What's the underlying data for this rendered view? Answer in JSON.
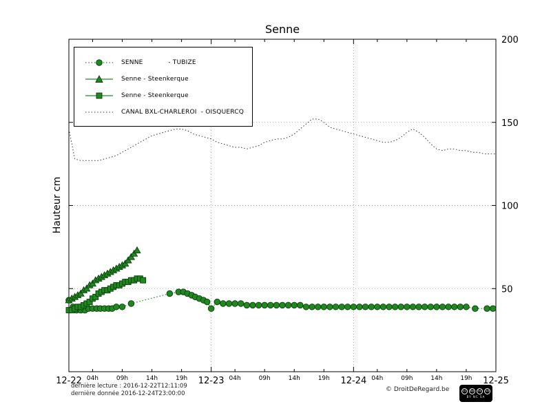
{
  "chart_data": {
    "type": "line",
    "title": "Senne",
    "ylabel": "Hauteur cm",
    "xlim_hours": [
      0,
      72
    ],
    "ylim": [
      0,
      200
    ],
    "yticks": [
      50,
      100,
      150,
      200
    ],
    "grid": "dotted-major",
    "legend_position": "upper-left",
    "x_day_ticks": [
      {
        "hour": 0,
        "label": "12-22"
      },
      {
        "hour": 24,
        "label": "12-23"
      },
      {
        "hour": 48,
        "label": "12-24"
      },
      {
        "hour": 72,
        "label": "12-25"
      }
    ],
    "x_hour_ticks": [
      {
        "hour": 4,
        "label": "04h"
      },
      {
        "hour": 9,
        "label": "09h"
      },
      {
        "hour": 14,
        "label": "14h"
      },
      {
        "hour": 19,
        "label": "19h"
      },
      {
        "hour": 28,
        "label": "04h"
      },
      {
        "hour": 33,
        "label": "09h"
      },
      {
        "hour": 38,
        "label": "14h"
      },
      {
        "hour": 43,
        "label": "19h"
      },
      {
        "hour": 52,
        "label": "04h"
      },
      {
        "hour": 57,
        "label": "09h"
      },
      {
        "hour": 62,
        "label": "14h"
      },
      {
        "hour": 67,
        "label": "19h"
      }
    ],
    "series": [
      {
        "name": "senne-tubize",
        "label": "SENNE            - TUBIZE",
        "marker": "circle",
        "line": "dotted",
        "color": "#218721",
        "points": [
          [
            0,
            43
          ],
          [
            0.7,
            39
          ],
          [
            1.3,
            37
          ],
          [
            2,
            37
          ],
          [
            2.7,
            37
          ],
          [
            3.3,
            38
          ],
          [
            4,
            38
          ],
          [
            4.7,
            38
          ],
          [
            5.3,
            38
          ],
          [
            6,
            38
          ],
          [
            6.7,
            38
          ],
          [
            7.3,
            38
          ],
          [
            8,
            39
          ],
          [
            9,
            39
          ],
          [
            10.5,
            41
          ],
          [
            17,
            47
          ],
          [
            18.5,
            48
          ],
          [
            19.3,
            48
          ],
          [
            20,
            47
          ],
          [
            20.7,
            46
          ],
          [
            21.3,
            45
          ],
          [
            22,
            44
          ],
          [
            22.7,
            43
          ],
          [
            23.3,
            42
          ],
          [
            24,
            38
          ],
          [
            25,
            42
          ],
          [
            26,
            41
          ],
          [
            27,
            41
          ],
          [
            28,
            41
          ],
          [
            29,
            41
          ],
          [
            30,
            40
          ],
          [
            31,
            40
          ],
          [
            32,
            40
          ],
          [
            33,
            40
          ],
          [
            34,
            40
          ],
          [
            35,
            40
          ],
          [
            36,
            40
          ],
          [
            37,
            40
          ],
          [
            38,
            40
          ],
          [
            39,
            40
          ],
          [
            40,
            39
          ],
          [
            41,
            39
          ],
          [
            42,
            39
          ],
          [
            43,
            39
          ],
          [
            44,
            39
          ],
          [
            45,
            39
          ],
          [
            46,
            39
          ],
          [
            47,
            39
          ],
          [
            48,
            39
          ],
          [
            49,
            39
          ],
          [
            50,
            39
          ],
          [
            51,
            39
          ],
          [
            52,
            39
          ],
          [
            53,
            39
          ],
          [
            54,
            39
          ],
          [
            55,
            39
          ],
          [
            56,
            39
          ],
          [
            57,
            39
          ],
          [
            58,
            39
          ],
          [
            59,
            39
          ],
          [
            60,
            39
          ],
          [
            61,
            39
          ],
          [
            62,
            39
          ],
          [
            63,
            39
          ],
          [
            64,
            39
          ],
          [
            65,
            39
          ],
          [
            66,
            39
          ],
          [
            67,
            39
          ],
          [
            68.5,
            38
          ],
          [
            70.5,
            38
          ],
          [
            71.5,
            38
          ]
        ]
      },
      {
        "name": "senne-steenkerque-triangles",
        "label": "Senne - Steenkerque",
        "marker": "triangle",
        "line": "solid",
        "color": "#218721",
        "points": [
          [
            0,
            43
          ],
          [
            0.5,
            44
          ],
          [
            1,
            45
          ],
          [
            1.5,
            46
          ],
          [
            2,
            47
          ],
          [
            2.5,
            49
          ],
          [
            3,
            50
          ],
          [
            3.5,
            52
          ],
          [
            4,
            53
          ],
          [
            4.5,
            55
          ],
          [
            5,
            56
          ],
          [
            5.5,
            57
          ],
          [
            6,
            58
          ],
          [
            6.5,
            59
          ],
          [
            7,
            60
          ],
          [
            7.5,
            61
          ],
          [
            8,
            62
          ],
          [
            8.5,
            63
          ],
          [
            9,
            64
          ],
          [
            9.5,
            65
          ],
          [
            10,
            67
          ],
          [
            10.5,
            69
          ],
          [
            11,
            71
          ],
          [
            11.5,
            73
          ]
        ]
      },
      {
        "name": "senne-steenkerque-squares",
        "label": "Senne - Steenkerque",
        "marker": "square",
        "line": "solid",
        "color": "#218721",
        "points": [
          [
            0,
            37
          ],
          [
            0.5,
            37
          ],
          [
            1,
            38
          ],
          [
            1.5,
            39
          ],
          [
            2,
            39
          ],
          [
            2.5,
            40
          ],
          [
            3,
            41
          ],
          [
            3.5,
            42
          ],
          [
            4,
            44
          ],
          [
            4.5,
            45
          ],
          [
            5,
            47
          ],
          [
            5.5,
            48
          ],
          [
            6,
            49
          ],
          [
            6.5,
            49
          ],
          [
            7,
            50
          ],
          [
            7.5,
            51
          ],
          [
            8,
            52
          ],
          [
            8.5,
            52
          ],
          [
            9,
            53
          ],
          [
            9.5,
            54
          ],
          [
            10,
            54
          ],
          [
            10.5,
            55
          ],
          [
            11,
            55
          ],
          [
            11.5,
            56
          ],
          [
            12,
            56
          ],
          [
            12.5,
            55
          ]
        ]
      },
      {
        "name": "canal-bxl-charleroi",
        "label": "CANAL BXL-CHARLEROI  - OISQUERCQ",
        "marker": "none",
        "line": "dotted",
        "color": "#333333",
        "points": [
          [
            0,
            146
          ],
          [
            1,
            128
          ],
          [
            2,
            127
          ],
          [
            3,
            127
          ],
          [
            4,
            127
          ],
          [
            5,
            127
          ],
          [
            6,
            128
          ],
          [
            7,
            129
          ],
          [
            8,
            130
          ],
          [
            9,
            132
          ],
          [
            10,
            134
          ],
          [
            11,
            136
          ],
          [
            12,
            138
          ],
          [
            13,
            140
          ],
          [
            14,
            142
          ],
          [
            15,
            143
          ],
          [
            16,
            144
          ],
          [
            17,
            145
          ],
          [
            18,
            146
          ],
          [
            19,
            146
          ],
          [
            20,
            145
          ],
          [
            21,
            143
          ],
          [
            22,
            142
          ],
          [
            23,
            141
          ],
          [
            24,
            140
          ],
          [
            25,
            138
          ],
          [
            26,
            137
          ],
          [
            27,
            136
          ],
          [
            28,
            135
          ],
          [
            29,
            135
          ],
          [
            30,
            134
          ],
          [
            31,
            135
          ],
          [
            32,
            136
          ],
          [
            33,
            138
          ],
          [
            34,
            139
          ],
          [
            35,
            140
          ],
          [
            36,
            140
          ],
          [
            37,
            141
          ],
          [
            38,
            143
          ],
          [
            39,
            146
          ],
          [
            40,
            149
          ],
          [
            41,
            152
          ],
          [
            42,
            152
          ],
          [
            43,
            150
          ],
          [
            44,
            147
          ],
          [
            45,
            146
          ],
          [
            46,
            145
          ],
          [
            47,
            144
          ],
          [
            48,
            143
          ],
          [
            49,
            142
          ],
          [
            50,
            141
          ],
          [
            51,
            140
          ],
          [
            52,
            139
          ],
          [
            53,
            138
          ],
          [
            54,
            138
          ],
          [
            55,
            139
          ],
          [
            56,
            141
          ],
          [
            57,
            144
          ],
          [
            58,
            146
          ],
          [
            59,
            144
          ],
          [
            60,
            141
          ],
          [
            61,
            137
          ],
          [
            62,
            134
          ],
          [
            63,
            133
          ],
          [
            64,
            134
          ],
          [
            65,
            134
          ],
          [
            66,
            133
          ],
          [
            67,
            133
          ],
          [
            68,
            132
          ],
          [
            69,
            132
          ],
          [
            70,
            131
          ],
          [
            71,
            131
          ],
          [
            72,
            131
          ]
        ]
      }
    ]
  },
  "footer": {
    "last_reading": "dernière lecture : 2016-12-22T12:11:09",
    "last_data": "dernière donnée  2016-12-24T23:00:00",
    "copyright": "© DroitDeRegard.be",
    "license": {
      "icons": [
        "cc",
        "by",
        "nc",
        "sa"
      ],
      "text": "BY NC SA"
    }
  }
}
